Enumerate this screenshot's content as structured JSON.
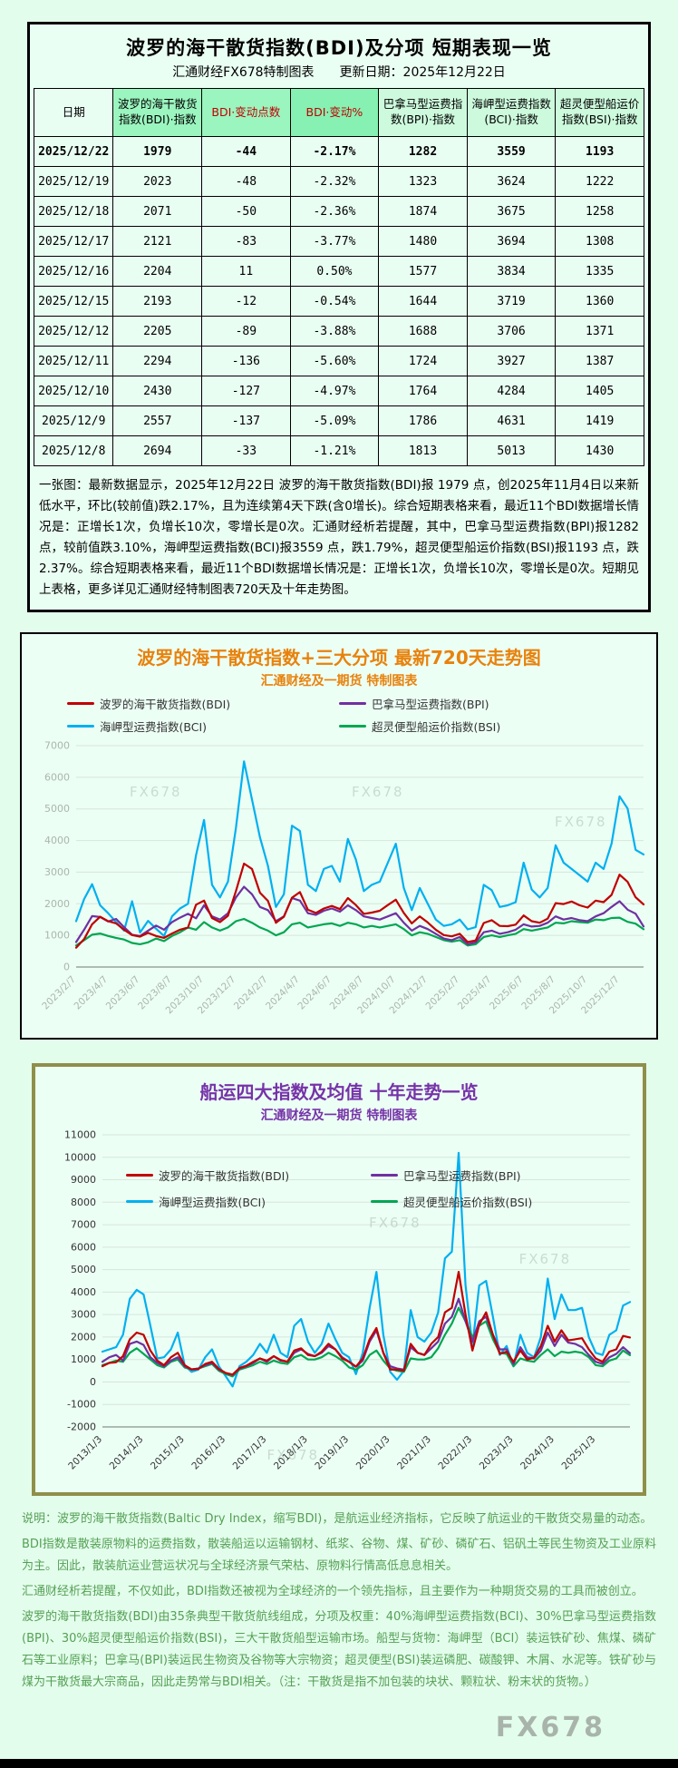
{
  "table_section": {
    "title": "波罗的海干散货指数(BDI)及分项  短期表现一览",
    "subtitle": "汇通财经FX678特制图表　　更新日期：2025年12月22日",
    "headers": [
      "日期",
      "波罗的海干散货指数(BDI)·指数",
      "BDI·变动点数",
      "BDI·变动%",
      "巴拿马型运费指数(BPI)·指数",
      "海岬型运费指数(BCI)·指数",
      "超灵便型船运价指数(BSI)·指数"
    ],
    "rows": [
      [
        "2025/12/22",
        "1979",
        "-44",
        "-2.17%",
        "1282",
        "3559",
        "1193"
      ],
      [
        "2025/12/19",
        "2023",
        "-48",
        "-2.32%",
        "1323",
        "3624",
        "1222"
      ],
      [
        "2025/12/18",
        "2071",
        "-50",
        "-2.36%",
        "1874",
        "3675",
        "1258"
      ],
      [
        "2025/12/17",
        "2121",
        "-83",
        "-3.77%",
        "1480",
        "3694",
        "1308"
      ],
      [
        "2025/12/16",
        "2204",
        "11",
        "0.50%",
        "1577",
        "3834",
        "1335"
      ],
      [
        "2025/12/15",
        "2193",
        "-12",
        "-0.54%",
        "1644",
        "3719",
        "1360"
      ],
      [
        "2025/12/12",
        "2205",
        "-89",
        "-3.88%",
        "1688",
        "3706",
        "1371"
      ],
      [
        "2025/12/11",
        "2294",
        "-136",
        "-5.60%",
        "1724",
        "3927",
        "1387"
      ],
      [
        "2025/12/10",
        "2430",
        "-127",
        "-4.97%",
        "1764",
        "4284",
        "1405"
      ],
      [
        "2025/12/9",
        "2557",
        "-137",
        "-5.09%",
        "1786",
        "4631",
        "1419"
      ],
      [
        "2025/12/8",
        "2694",
        "-33",
        "-1.21%",
        "1813",
        "5013",
        "1430"
      ]
    ],
    "note": "一张图：最新数据显示，2025年12月22日 波罗的海干散货指数(BDI)报 1979 点，创2025年11月4日以来新低水平，环比(较前值)跌2.17%，且为连续第4天下跌(含0增长)。综合短期表格来看，最近11个BDI数据增长情况是：正增长1次，负增长10次，零增长是0次。汇通财经析若提醒，其中，巴拿马型运费指数(BPI)报1282 点，较前值跌3.10%，海岬型运费指数(BCI)报3559 点，跌1.79%，超灵便型船运价指数(BSI)报1193 点，跌2.37%。综合短期表格来看，最近11个BDI数据增长情况是：正增长1次，负增长10次，零增长是0次。短期见上表格，更多详见汇通财经特制图表720天及十年走势图。"
  },
  "chart_data": [
    {
      "id": "chart720",
      "type": "line",
      "title": "波罗的海干散货指数+三大分项  最新720天走势图",
      "subtitle": "汇通财经及一期货  特制图表",
      "title_color": "#e8820c",
      "legend_position": "top",
      "grid": true,
      "ylim": [
        0,
        7000
      ],
      "y_tick_step": 1000,
      "x_label_step": 4,
      "x_labels": [
        "2023/2/7",
        "2023/4/7",
        "2023/6/7",
        "2023/8/7",
        "2023/10/7",
        "2023/12/7",
        "2024/2/7",
        "2024/4/7",
        "2024/6/7",
        "2024/8/7",
        "2024/10/7",
        "2024/12/7",
        "2025/2/7",
        "2025/4/7",
        "2025/6/7",
        "2025/8/7",
        "2025/10/7",
        "2025/12/7"
      ],
      "series": [
        {
          "name": "波罗的海干散货指数(BDI)",
          "color": "#c00000",
          "values": [
            610,
            880,
            1350,
            1590,
            1450,
            1380,
            1180,
            1010,
            960,
            1080,
            980,
            920,
            1060,
            1180,
            1250,
            1970,
            2100,
            1550,
            1420,
            1620,
            2400,
            3270,
            3100,
            2350,
            2090,
            1400,
            1590,
            2190,
            2370,
            1810,
            1710,
            1850,
            1930,
            1830,
            2180,
            1960,
            1680,
            1720,
            1780,
            1960,
            2130,
            1710,
            1380,
            1600,
            1410,
            1180,
            1010,
            970,
            1050,
            790,
            840,
            1390,
            1480,
            1300,
            1290,
            1340,
            1630,
            1450,
            1400,
            1530,
            2020,
            1990,
            2070,
            1950,
            1880,
            2100,
            2050,
            2280,
            2920,
            2694,
            2205,
            1979
          ]
        },
        {
          "name": "巴拿马型运费指数(BPI)",
          "color": "#7030a0",
          "values": [
            790,
            1180,
            1610,
            1580,
            1440,
            1520,
            1260,
            1020,
            980,
            1150,
            1310,
            1180,
            1420,
            1560,
            1680,
            1540,
            1950,
            1600,
            1500,
            1700,
            2200,
            2540,
            2300,
            1900,
            1800,
            1450,
            1600,
            2180,
            2100,
            1700,
            1650,
            1780,
            1850,
            1750,
            1950,
            1800,
            1600,
            1550,
            1500,
            1600,
            1700,
            1400,
            1150,
            1300,
            1200,
            1050,
            900,
            850,
            950,
            720,
            780,
            1100,
            1150,
            1050,
            1100,
            1180,
            1350,
            1280,
            1300,
            1400,
            1600,
            1500,
            1550,
            1480,
            1450,
            1600,
            1700,
            1900,
            2080,
            1813,
            1688,
            1282
          ]
        },
        {
          "name": "海岬型运费指数(BCI)",
          "color": "#00b0f0",
          "values": [
            1450,
            2150,
            2620,
            1950,
            1700,
            1420,
            1150,
            2080,
            1090,
            1460,
            1210,
            980,
            1600,
            1850,
            2000,
            3540,
            4650,
            2600,
            2200,
            2700,
            4400,
            6500,
            5300,
            4100,
            3200,
            1900,
            2300,
            4470,
            4300,
            2600,
            2400,
            3100,
            3200,
            2700,
            4050,
            3400,
            2400,
            2600,
            2700,
            3300,
            3900,
            2500,
            1800,
            2500,
            2000,
            1500,
            1300,
            1350,
            1500,
            1190,
            1260,
            2600,
            2430,
            1900,
            1950,
            2050,
            3300,
            2450,
            2200,
            2500,
            3850,
            3300,
            3100,
            2900,
            2700,
            3300,
            3100,
            3900,
            5400,
            5013,
            3706,
            3559
          ]
        },
        {
          "name": "超灵便型船运价指数(BSI)",
          "color": "#00a651",
          "values": [
            680,
            850,
            1020,
            1060,
            980,
            920,
            870,
            760,
            720,
            780,
            900,
            820,
            980,
            1100,
            1250,
            1180,
            1420,
            1250,
            1150,
            1250,
            1450,
            1520,
            1400,
            1250,
            1150,
            1000,
            1100,
            1350,
            1400,
            1250,
            1300,
            1350,
            1380,
            1300,
            1400,
            1350,
            1250,
            1300,
            1250,
            1300,
            1350,
            1200,
            1000,
            1100,
            1050,
            950,
            850,
            800,
            850,
            680,
            720,
            950,
            1000,
            950,
            1000,
            1050,
            1200,
            1150,
            1200,
            1250,
            1400,
            1380,
            1450,
            1420,
            1400,
            1500,
            1480,
            1550,
            1560,
            1430,
            1371,
            1193
          ]
        }
      ]
    },
    {
      "id": "chart10y",
      "type": "line",
      "title": "船运四大指数及均值 十年走势一览",
      "subtitle": "汇通财经及一期货 特制图表",
      "title_color": "#7633a8",
      "legend_position": "inside-top",
      "grid": true,
      "ylim": [
        -2000,
        11000
      ],
      "y_tick_step": 1000,
      "x_label_step": 6,
      "x_labels": [
        "2013/1/3",
        "2014/1/3",
        "2015/1/3",
        "2016/1/3",
        "2017/1/3",
        "2018/1/3",
        "2019/1/3",
        "2020/1/3",
        "2021/1/3",
        "2022/1/3",
        "2023/1/3",
        "2024/1/3",
        "2025/1/3"
      ],
      "series": [
        {
          "name": "波罗的海干散货指数(BDI)",
          "color": "#c00000",
          "values": [
            700,
            850,
            880,
            1150,
            1900,
            2200,
            2100,
            1400,
            950,
            750,
            1100,
            1300,
            750,
            560,
            580,
            800,
            900,
            580,
            400,
            330,
            620,
            720,
            900,
            1050,
            950,
            1150,
            980,
            900,
            1400,
            1500,
            1200,
            1150,
            1350,
            1700,
            1450,
            1050,
            900,
            680,
            1050,
            1900,
            2400,
            1300,
            550,
            550,
            500,
            1700,
            1300,
            1200,
            1700,
            2000,
            3100,
            3300,
            4900,
            3000,
            1400,
            2550,
            3100,
            2100,
            1250,
            1350,
            900,
            1400,
            1000,
            1080,
            1600,
            2500,
            1800,
            2300,
            1850,
            1900,
            1950,
            1450,
            1050,
            900,
            1350,
            1450,
            2050,
            1979
          ]
        },
        {
          "name": "巴拿马型运费指数(BPI)",
          "color": "#7030a0",
          "values": [
            900,
            1100,
            1200,
            950,
            1700,
            1800,
            1650,
            1100,
            850,
            700,
            950,
            1100,
            700,
            560,
            600,
            750,
            850,
            550,
            400,
            310,
            600,
            700,
            850,
            1050,
            900,
            1150,
            950,
            900,
            1300,
            1450,
            1250,
            1150,
            1300,
            1600,
            1450,
            1100,
            900,
            680,
            950,
            1800,
            2300,
            1300,
            700,
            600,
            550,
            1550,
            1300,
            1200,
            1500,
            1800,
            2600,
            2900,
            3700,
            2700,
            1800,
            2700,
            2900,
            2100,
            1450,
            1450,
            800,
            1550,
            1100,
            1050,
            1400,
            2200,
            1600,
            2100,
            1750,
            1700,
            1550,
            1200,
            900,
            800,
            1100,
            1250,
            1550,
            1282
          ]
        },
        {
          "name": "海岬型运费指数(BCI)",
          "color": "#00b0f0",
          "values": [
            1350,
            1450,
            1550,
            2100,
            3700,
            4100,
            3900,
            2500,
            1050,
            1100,
            1450,
            2200,
            750,
            450,
            550,
            1100,
            1450,
            700,
            250,
            -200,
            700,
            900,
            1200,
            1700,
            1300,
            2100,
            1300,
            1100,
            2500,
            2800,
            1800,
            1300,
            1700,
            2600,
            1900,
            1300,
            1100,
            350,
            1300,
            3300,
            4900,
            2100,
            450,
            100,
            500,
            3200,
            2000,
            1800,
            2200,
            3100,
            5500,
            5800,
            10200,
            4300,
            1600,
            4300,
            4500,
            2900,
            1200,
            1600,
            700,
            2100,
            1300,
            1100,
            2000,
            4600,
            2800,
            3900,
            3200,
            3200,
            3300,
            2000,
            1300,
            1200,
            2100,
            2300,
            3400,
            3559
          ]
        },
        {
          "name": "超灵便型船运价指数(BSI)",
          "color": "#00a651",
          "values": [
            750,
            850,
            950,
            900,
            1300,
            1500,
            1250,
            1000,
            750,
            650,
            900,
            1000,
            650,
            550,
            600,
            700,
            800,
            500,
            350,
            250,
            550,
            650,
            750,
            900,
            800,
            950,
            850,
            800,
            1100,
            1200,
            1000,
            1000,
            1100,
            1300,
            1150,
            950,
            650,
            550,
            750,
            1200,
            1400,
            950,
            600,
            500,
            450,
            1050,
            1000,
            1000,
            1100,
            1500,
            2100,
            2600,
            3300,
            2700,
            2000,
            2500,
            2700,
            1900,
            1300,
            1250,
            700,
            1050,
            950,
            900,
            1200,
            1450,
            1150,
            1350,
            1300,
            1350,
            1300,
            1100,
            750,
            700,
            950,
            1050,
            1400,
            1193
          ]
        }
      ]
    }
  ],
  "watermark": "FX678",
  "footer": {
    "paragraphs": [
      "说明：波罗的海干散货指数(Baltic Dry Index，缩写BDI)，是航运业经济指标，它反映了航运业的干散货交易量的动态。",
      "BDI指数是散装原物料的运费指数，散装船运以运输钢材、纸浆、谷物、煤、矿砂、磷矿石、铝矾土等民生物资及工业原料为主。因此，散装航运业营运状况与全球经济景气荣枯、原物料行情高低息息相关。",
      "汇通财经析若提醒，不仅如此，BDI指数还被视为全球经济的一个领先指标，且主要作为一种期货交易的工具而被创立。",
      "波罗的海干散货指数(BDI)由35条典型干散货航线组成，分项及权重：40%海岬型运费指数(BCI)、30%巴拿马型运费指数(BPI)、30%超灵便型船运价指数(BSI)，三大干散货船型运输市场。船型与货物：海岬型（BCI）装运铁矿砂、焦煤、磷矿石等工业原料；巴拿马(BPI)装运民生物资及谷物等大宗物资；超灵便型(BSI)装运磷肥、碳酸钾、木屑、水泥等。铁矿砂与煤为干散货最大宗商品，因此走势常与BDI相关。（注：干散货是指不加包装的块状、颗粒状、粉末状的货物。）"
    ],
    "brand": "FX678"
  }
}
